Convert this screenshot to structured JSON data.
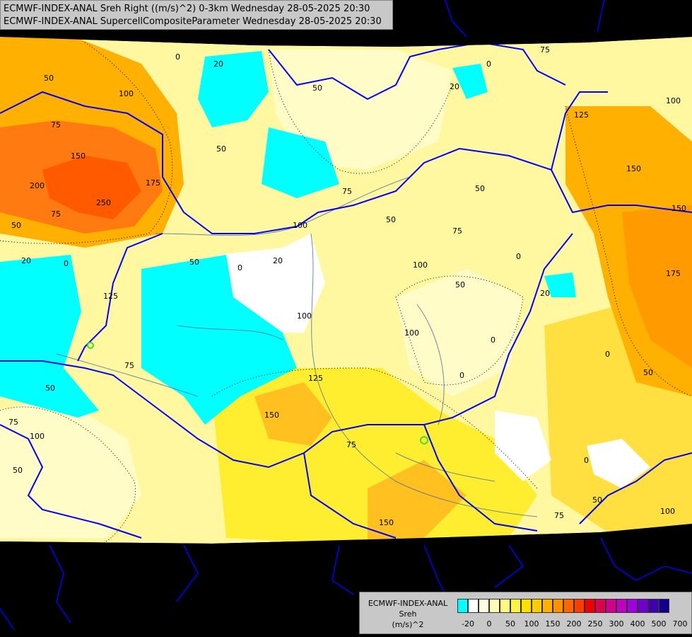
{
  "header": {
    "line1": "ECMWF-INDEX-ANAL Sreh Right ((m/s)^2) 0-3km Wednesday 28-05-2025 20:30",
    "line2": "ECMWF-INDEX-ANAL SupercellCompositeParameter Wednesday 28-05-2025 20:30"
  },
  "legend": {
    "line1": "ECMWF-INDEX-ANAL",
    "line2": "Sreh",
    "line3": "(m/s)^2",
    "colors": [
      "#00ffff",
      "#ffffff",
      "#fffde0",
      "#fffcb4",
      "#fff980",
      "#fff440",
      "#ffe000",
      "#ffcc00",
      "#ffb000",
      "#ff9000",
      "#ff6400",
      "#ff3c00",
      "#f00000",
      "#e00050",
      "#d00090",
      "#c000c0",
      "#a000e0",
      "#7000d0",
      "#4000b0",
      "#100090"
    ],
    "ticks": [
      "-20",
      "0",
      "50",
      "100",
      "150",
      "200",
      "250",
      "300",
      "400",
      "500",
      "700"
    ]
  },
  "contour_labels": [
    "0",
    "20",
    "50",
    "75",
    "100",
    "125",
    "150",
    "175",
    "200",
    "250"
  ],
  "colors": {
    "background_mask": "#000000",
    "cyan": "#00ffff",
    "pale": "#fffcc8",
    "yellow": "#fff100",
    "orange": "#ffb400",
    "red_orange": "#ff6a00",
    "border": "#0000ff",
    "river": "#4b6ea0"
  }
}
